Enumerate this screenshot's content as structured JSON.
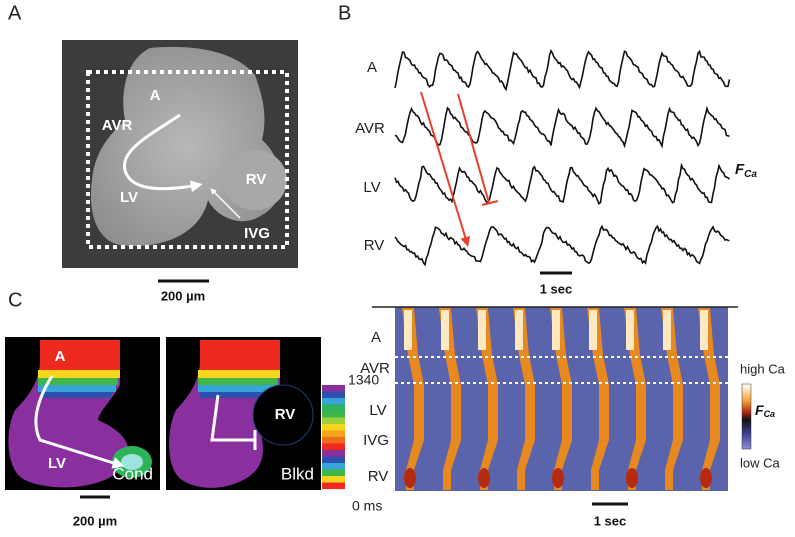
{
  "panel_a": {
    "label": "A",
    "image_labels": [
      "A",
      "AVR",
      "LV",
      "RV",
      "IVG"
    ],
    "scale_bar": "200 µm"
  },
  "panel_b": {
    "label": "B",
    "trace_labels": [
      "A",
      "AVR",
      "LV",
      "RV"
    ],
    "signal": {
      "symbol": "F",
      "subscript": "Ca"
    },
    "scale_bar": "1 sec"
  },
  "panel_c": {
    "label": "C",
    "maps": [
      {
        "labels": [
          "A",
          "LV"
        ],
        "condition": "Cond"
      },
      {
        "labels": [
          "RV"
        ],
        "condition": "Blkd"
      }
    ],
    "colorbar": {
      "max_label": "1340",
      "min_label": "0 ms"
    },
    "scale_bar": "200 µm",
    "kymograph": {
      "row_labels": [
        "A",
        "AVR",
        "LV",
        "IVG",
        "RV"
      ],
      "high_label": "high Ca",
      "low_label": "low Ca",
      "signal": {
        "symbol": "F",
        "subscript": "Ca"
      },
      "scale_bar": "1 sec"
    }
  }
}
